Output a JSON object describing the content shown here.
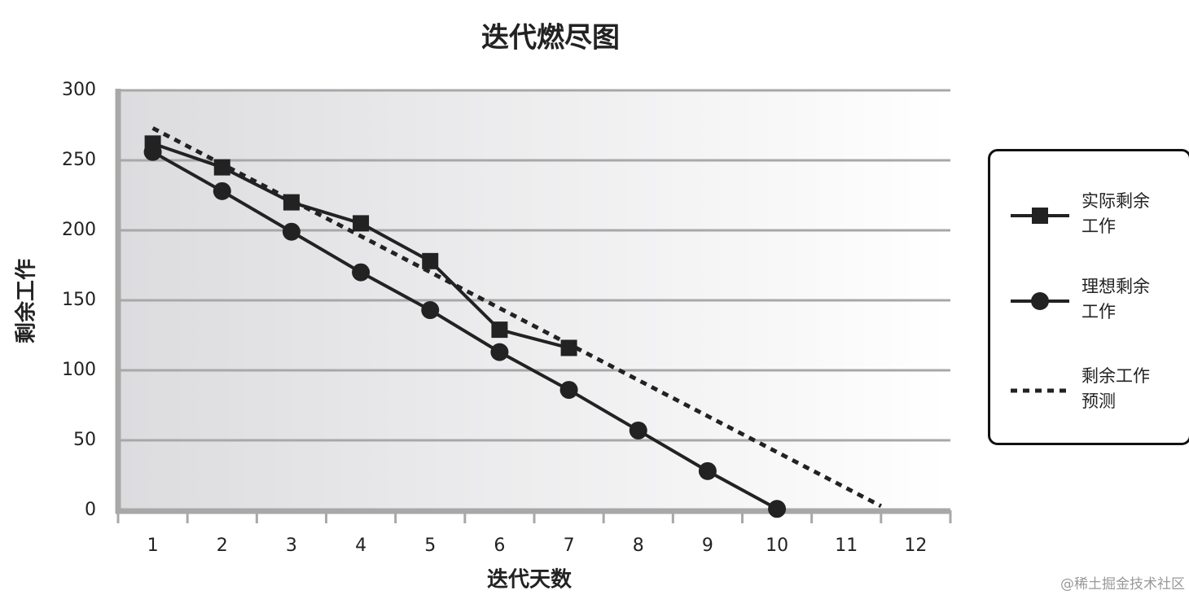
{
  "chart_data": {
    "type": "line",
    "title": "迭代燃尽图",
    "xlabel": "迭代天数",
    "ylabel": "剩余工作",
    "categories": [
      "1",
      "2",
      "3",
      "4",
      "5",
      "6",
      "7",
      "8",
      "9",
      "10",
      "11",
      "12"
    ],
    "ylim": [
      0,
      300
    ],
    "yticks": [
      0,
      50,
      100,
      150,
      200,
      250,
      300
    ],
    "grid": true,
    "series": [
      {
        "name": "实际剩余工作",
        "color": "#222222",
        "marker": "square",
        "values": [
          262,
          245,
          220,
          205,
          178,
          129,
          116,
          null,
          null,
          null,
          null,
          null
        ]
      },
      {
        "name": "理想剩余工作",
        "color": "#222222",
        "marker": "circle",
        "values": [
          256,
          228,
          199,
          170,
          143,
          113,
          86,
          57,
          28,
          1,
          null,
          null
        ]
      },
      {
        "name": "剩余工作预测",
        "color": "#222222",
        "dash": true,
        "x": [
          1,
          11.5
        ],
        "values": [
          273,
          3
        ]
      }
    ],
    "watermark": "@稀土掘金技术社区"
  }
}
